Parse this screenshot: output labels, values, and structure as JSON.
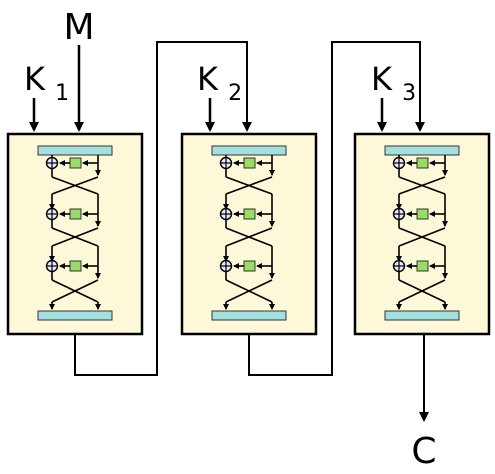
{
  "input_label": "M",
  "output_label": "C",
  "blocks": [
    {
      "key_letter": "K",
      "key_sub": "1"
    },
    {
      "key_letter": "K",
      "key_sub": "2"
    },
    {
      "key_letter": "K",
      "key_sub": "3"
    }
  ],
  "colors": {
    "block_fill": "#fcf8d8",
    "block_stroke": "#000000",
    "bar_fill": "#a5e0e0",
    "f_box_fill": "#99dd66",
    "line": "#000000",
    "xor_fill": "#e8e8ff"
  }
}
